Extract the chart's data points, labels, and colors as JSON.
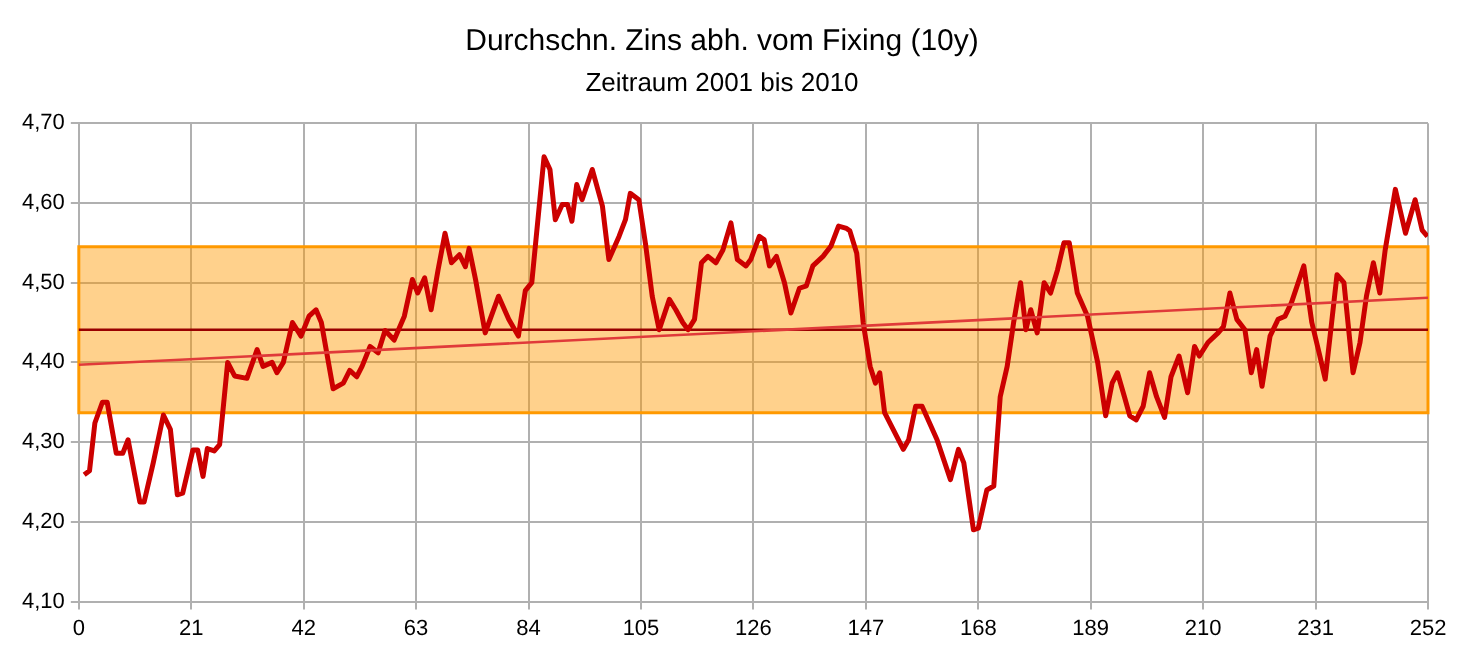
{
  "chart_data": {
    "type": "line",
    "title": "Durchschn. Zins abh. vom Fixing (10y)",
    "subtitle": "Zeitraum 2001 bis 2010",
    "series": [
      {
        "color": "#cc0000",
        "x": [
          1,
          2,
          3,
          4.4,
          5.3,
          7,
          8.2,
          9.2,
          11.4,
          12.2,
          13.9,
          15.8,
          17.1,
          18.4,
          19.4,
          21.3,
          22.2,
          23.2,
          24,
          25.3,
          26.3,
          27.8,
          29.1,
          31.4,
          33.3,
          34.4,
          36.1,
          37,
          38.2,
          39.9,
          41.5,
          43,
          44.3,
          45.3,
          47.5,
          49.4,
          50.6,
          51.9,
          52.9,
          54.4,
          55.9,
          57.2,
          58.9,
          60.8,
          62.3,
          63.3,
          64.6,
          65.8,
          67.1,
          68.4,
          69.6,
          71.1,
          72.2,
          72.9,
          74.1,
          75.9,
          78.4,
          80.3,
          82.1,
          83.4,
          84.6,
          86.9,
          88,
          89,
          90.3,
          91.3,
          92.1,
          93,
          94,
          95.9,
          97.8,
          99,
          100.9,
          102.1,
          103,
          104.6,
          105.9,
          107.1,
          108.4,
          110.3,
          111.5,
          112.8,
          113.8,
          115,
          116.3,
          117.5,
          119,
          120.3,
          121.8,
          123,
          124.6,
          125.5,
          127.1,
          128,
          129,
          130.3,
          131.8,
          133,
          134.6,
          135.9,
          137.1,
          139,
          140.5,
          141.9,
          143.4,
          144,
          145.3,
          146.5,
          147.8,
          148.8,
          149.6,
          150.5,
          152.1,
          154,
          155,
          156.3,
          157.5,
          160.3,
          162.8,
          164.3,
          165.3,
          167.1,
          168,
          169.6,
          170.9,
          172.1,
          173.4,
          174.6,
          175.9,
          176.9,
          177.8,
          179,
          180.3,
          181.5,
          182.8,
          184,
          185,
          186.5,
          188.4,
          190.3,
          191.8,
          193,
          194,
          195.3,
          196.3,
          197.5,
          198.8,
          200,
          201.3,
          202.8,
          204,
          205.5,
          207.1,
          208.4,
          209.3,
          210.9,
          212.8,
          213.8,
          215,
          216.3,
          217.8,
          219,
          220,
          221,
          222.5,
          224,
          225.3,
          226.5,
          228.8,
          230.3,
          231.8,
          232.8,
          234,
          235,
          236.3,
          238,
          239.3,
          240.5,
          241.8,
          243,
          244,
          245.9,
          247.8,
          249.6,
          250.9,
          251.9
        ],
        "values": [
          4.259,
          4.264,
          4.324,
          4.35,
          4.35,
          4.286,
          4.286,
          4.303,
          4.225,
          4.225,
          4.274,
          4.334,
          4.316,
          4.234,
          4.236,
          4.29,
          4.29,
          4.257,
          4.292,
          4.289,
          4.297,
          4.4,
          4.383,
          4.38,
          4.416,
          4.395,
          4.4,
          4.387,
          4.4,
          4.45,
          4.433,
          4.458,
          4.466,
          4.45,
          4.367,
          4.374,
          4.39,
          4.382,
          4.395,
          4.42,
          4.412,
          4.44,
          4.428,
          4.458,
          4.504,
          4.487,
          4.506,
          4.466,
          4.516,
          4.562,
          4.525,
          4.535,
          4.52,
          4.543,
          4.504,
          4.437,
          4.483,
          4.454,
          4.433,
          4.49,
          4.5,
          4.658,
          4.642,
          4.579,
          4.598,
          4.598,
          4.577,
          4.623,
          4.604,
          4.642,
          4.596,
          4.529,
          4.558,
          4.579,
          4.612,
          4.604,
          4.546,
          4.483,
          4.441,
          4.479,
          4.466,
          4.45,
          4.441,
          4.454,
          4.525,
          4.533,
          4.525,
          4.541,
          4.575,
          4.529,
          4.521,
          4.529,
          4.558,
          4.554,
          4.521,
          4.533,
          4.5,
          4.462,
          4.493,
          4.496,
          4.521,
          4.533,
          4.546,
          4.571,
          4.568,
          4.565,
          4.537,
          4.45,
          4.395,
          4.374,
          4.387,
          4.337,
          4.316,
          4.291,
          4.303,
          4.345,
          4.345,
          4.303,
          4.253,
          4.291,
          4.274,
          4.19,
          4.192,
          4.24,
          4.245,
          4.357,
          4.395,
          4.45,
          4.5,
          4.441,
          4.466,
          4.437,
          4.5,
          4.487,
          4.516,
          4.55,
          4.55,
          4.487,
          4.458,
          4.4,
          4.333,
          4.374,
          4.387,
          4.357,
          4.333,
          4.328,
          4.345,
          4.387,
          4.357,
          4.331,
          4.382,
          4.408,
          4.362,
          4.42,
          4.408,
          4.425,
          4.437,
          4.445,
          4.487,
          4.454,
          4.441,
          4.387,
          4.416,
          4.37,
          4.433,
          4.454,
          4.458,
          4.475,
          4.521,
          4.45,
          4.408,
          4.379,
          4.45,
          4.51,
          4.5,
          4.387,
          4.425,
          4.483,
          4.525,
          4.487,
          4.541,
          4.617,
          4.562,
          4.604,
          4.566,
          4.558
        ]
      },
      {
        "color": "#e03a3a",
        "x": [
          0,
          252
        ],
        "values": [
          4.397,
          4.481
        ]
      }
    ],
    "xlim": [
      0,
      252
    ],
    "xticks": [
      0,
      21,
      42,
      63,
      84,
      105,
      126,
      147,
      168,
      189,
      210,
      231,
      252
    ],
    "ylim": [
      4.1,
      4.7
    ],
    "yticks": [
      {
        "value": 4.1,
        "label": "4,10"
      },
      {
        "value": 4.2,
        "label": "4,20"
      },
      {
        "value": 4.3,
        "label": "4,30"
      },
      {
        "value": 4.4,
        "label": "4,40"
      },
      {
        "value": 4.5,
        "label": "4,50"
      },
      {
        "value": 4.6,
        "label": "4,60"
      },
      {
        "value": 4.7,
        "label": "4,70"
      }
    ],
    "ref_lines": [
      {
        "axis": "y",
        "value": 4.441,
        "color": "#990000"
      }
    ],
    "bands": [
      {
        "axis": "y",
        "from": 4.337,
        "to": 4.545,
        "color": "#ff9900"
      }
    ],
    "grid": true,
    "legend": false,
    "marker": "none",
    "line_style": "solid"
  }
}
